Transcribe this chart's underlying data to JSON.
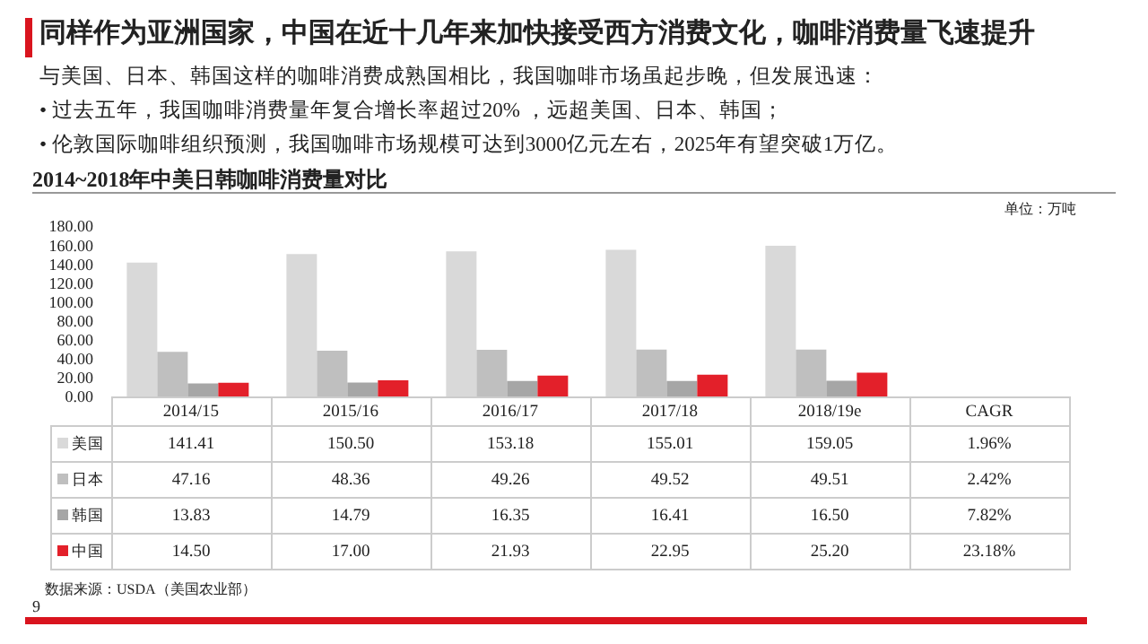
{
  "chart_data": {
    "type": "bar",
    "title": "同样作为亚洲国家，中国在近十几年来加快接受西方消费文化，咖啡消费量飞速提升",
    "subtitle": "2014~2018年中美日韩咖啡消费量对比",
    "annotations": [
      "与美国、日本、韩国这样的咖啡消费成熟国相比，我国咖啡市场虽起步晚，但发展迅速：",
      "•  过去五年，我国咖啡消费量年复合增长率超过20% ，远超美国、日本、韩国；",
      "•  伦敦国际咖啡组织预测，我国咖啡市场规模可达到3000亿元左右，2025年有望突破1万亿。",
      "单位：万吨",
      "数据来源：USDA（美国农业部）",
      "9"
    ],
    "categories": [
      "2014/15",
      "2015/16",
      "2016/17",
      "2017/18",
      "2018/19e",
      "CAGR"
    ],
    "series": [
      {
        "name": "美国",
        "color": "#d9d9d9",
        "values": [
          141.41,
          150.5,
          153.18,
          155.01,
          159.05,
          null
        ],
        "value_labels": [
          "141.41",
          "150.50",
          "153.18",
          "155.01",
          "159.05",
          "1.96%"
        ]
      },
      {
        "name": "日本",
        "color": "#bfbfbf",
        "values": [
          47.16,
          48.36,
          49.26,
          49.52,
          49.51,
          null
        ],
        "value_labels": [
          "47.16",
          "48.36",
          "49.26",
          "49.52",
          "49.51",
          "2.42%"
        ]
      },
      {
        "name": "韩国",
        "color": "#a6a6a6",
        "values": [
          13.83,
          14.79,
          16.35,
          16.41,
          16.5,
          null
        ],
        "value_labels": [
          "13.83",
          "14.79",
          "16.35",
          "16.41",
          "16.50",
          "7.82%"
        ]
      },
      {
        "name": "中国",
        "color": "#e3202a",
        "values": [
          14.5,
          17.0,
          21.93,
          22.95,
          25.2,
          null
        ],
        "value_labels": [
          "14.50",
          "17.00",
          "21.93",
          "22.95",
          "25.20",
          "23.18%"
        ]
      }
    ],
    "ylim": [
      0,
      180
    ],
    "yticks": [
      {
        "value": 0,
        "label": "0.00"
      },
      {
        "value": 20,
        "label": "20.00"
      },
      {
        "value": 40,
        "label": "40.00"
      },
      {
        "value": 60,
        "label": "60.00"
      },
      {
        "value": 80,
        "label": "80.00"
      },
      {
        "value": 100,
        "label": "100.00"
      },
      {
        "value": 120,
        "label": "120.00"
      },
      {
        "value": 140,
        "label": "140.00"
      },
      {
        "value": 160,
        "label": "160.00"
      },
      {
        "value": 180,
        "label": "180.00"
      }
    ],
    "grid": false,
    "legend": "bottom"
  }
}
